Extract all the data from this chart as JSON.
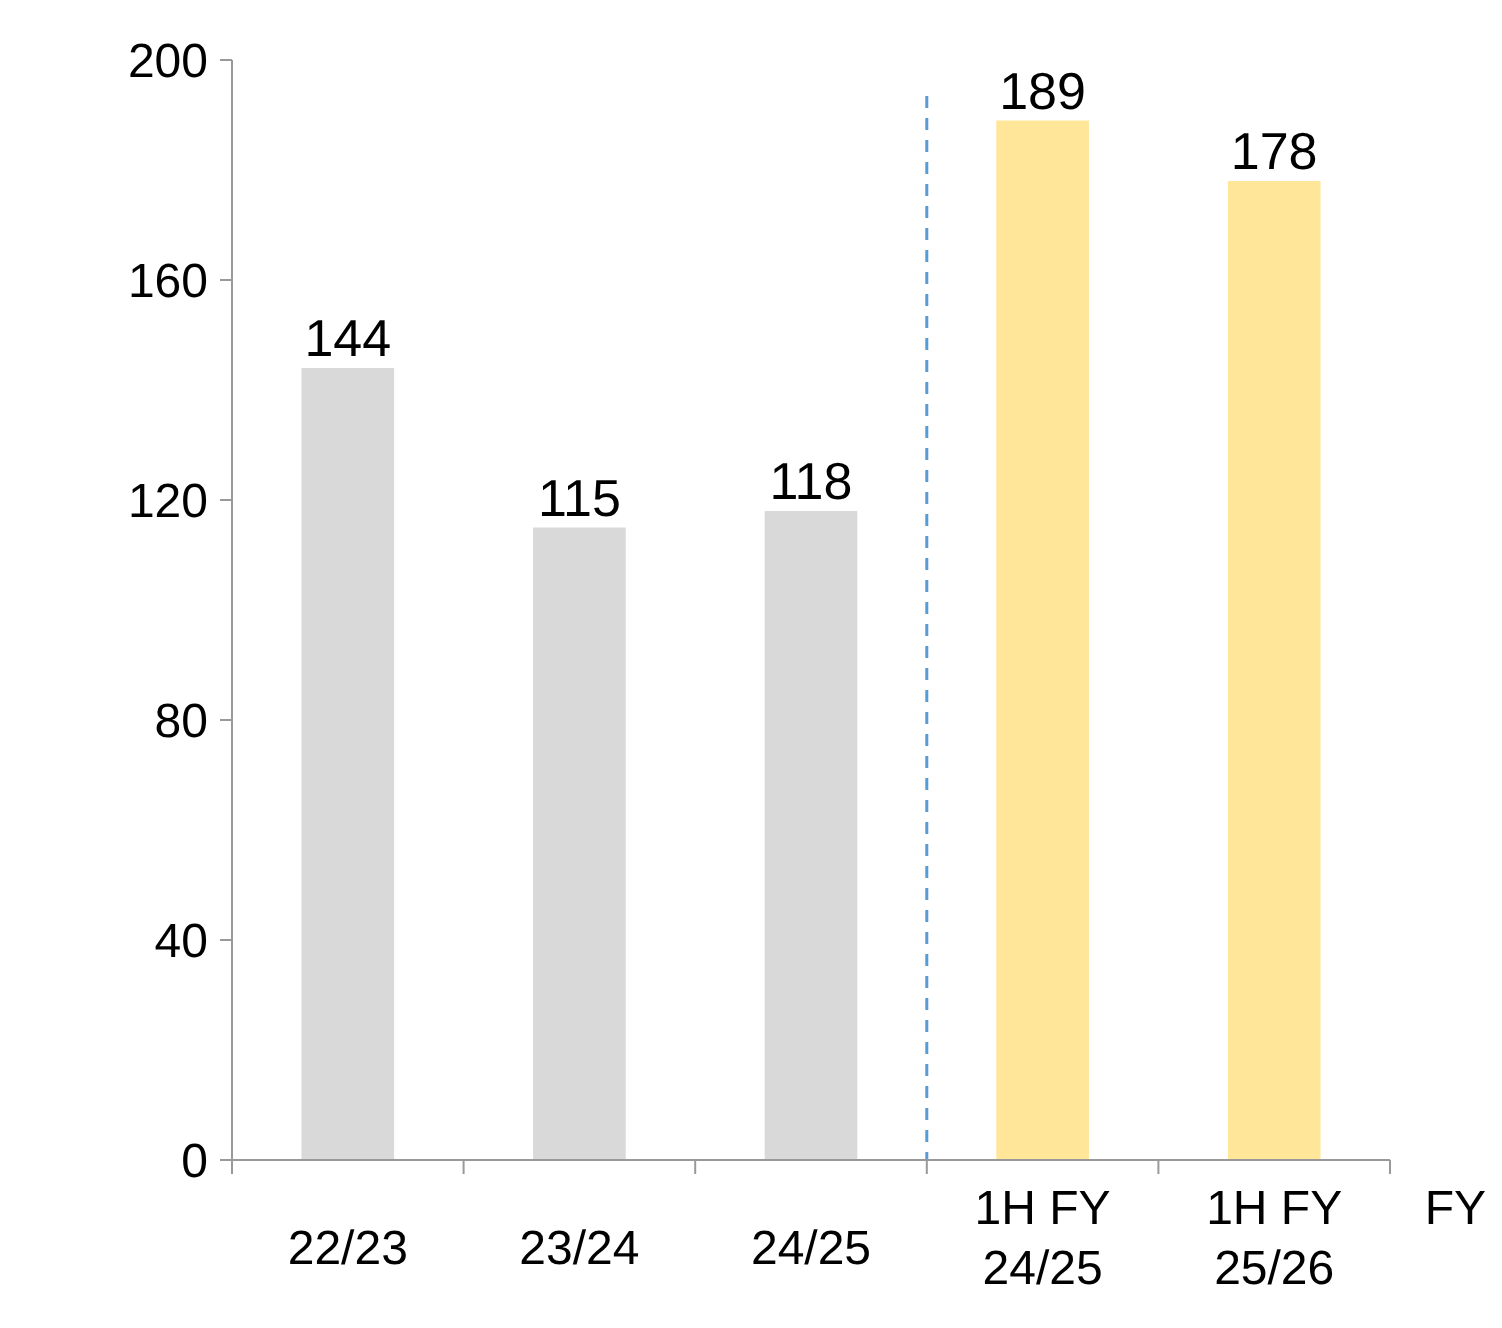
{
  "chart_data": {
    "type": "bar",
    "categories": [
      "22/23",
      "23/24",
      "24/25",
      "1H FY 24/25",
      "1H FY 25/26"
    ],
    "values": [
      144,
      115,
      118,
      189,
      178
    ],
    "colors": [
      "#d9d9d9",
      "#d9d9d9",
      "#d9d9d9",
      "#ffe699",
      "#ffe699"
    ],
    "ylim": [
      0,
      200
    ],
    "yticks": [
      0,
      40,
      80,
      120,
      160,
      200
    ],
    "data_labels": true,
    "grid": false,
    "ref_lines": [
      {
        "axis": "x",
        "value": "1H FY 24/25",
        "color": "#5b9bd5",
        "line_style": "dashed"
      }
    ],
    "annotations": [
      "FY"
    ]
  }
}
